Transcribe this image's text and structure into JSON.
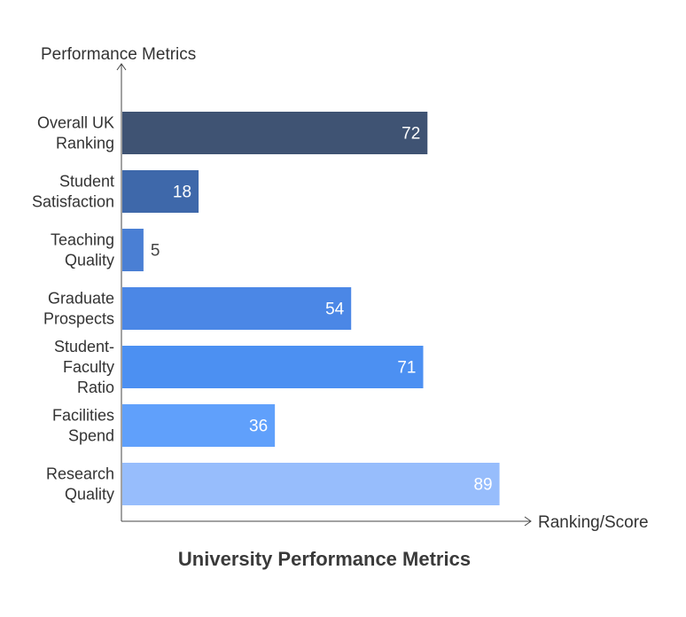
{
  "chart_data": {
    "type": "bar",
    "orientation": "horizontal",
    "title": "University Performance Metrics",
    "xlabel": "Ranking/Score",
    "ylabel": "Performance Metrics",
    "categories": [
      "Overall UK Ranking",
      "Student Satisfaction",
      "Teaching Quality",
      "Graduate Prospects",
      "Student-Faculty Ratio",
      "Facilities Spend",
      "Research Quality"
    ],
    "category_lines": [
      [
        "Overall UK",
        "Ranking"
      ],
      [
        "Student",
        "Satisfaction"
      ],
      [
        "Teaching",
        "Quality"
      ],
      [
        "Graduate",
        "Prospects"
      ],
      [
        "Student-",
        "Faculty",
        "Ratio"
      ],
      [
        "Facilities",
        "Spend"
      ],
      [
        "Research",
        "Quality"
      ]
    ],
    "values": [
      72,
      18,
      5,
      54,
      71,
      36,
      89
    ],
    "colors": [
      "#3f5373",
      "#3e68aa",
      "#4a7fd4",
      "#4b87e6",
      "#4c90f2",
      "#60a0fb",
      "#97bdfc"
    ],
    "xlim": [
      0,
      110
    ],
    "grid": false,
    "legend": "none",
    "data_labels": true
  }
}
